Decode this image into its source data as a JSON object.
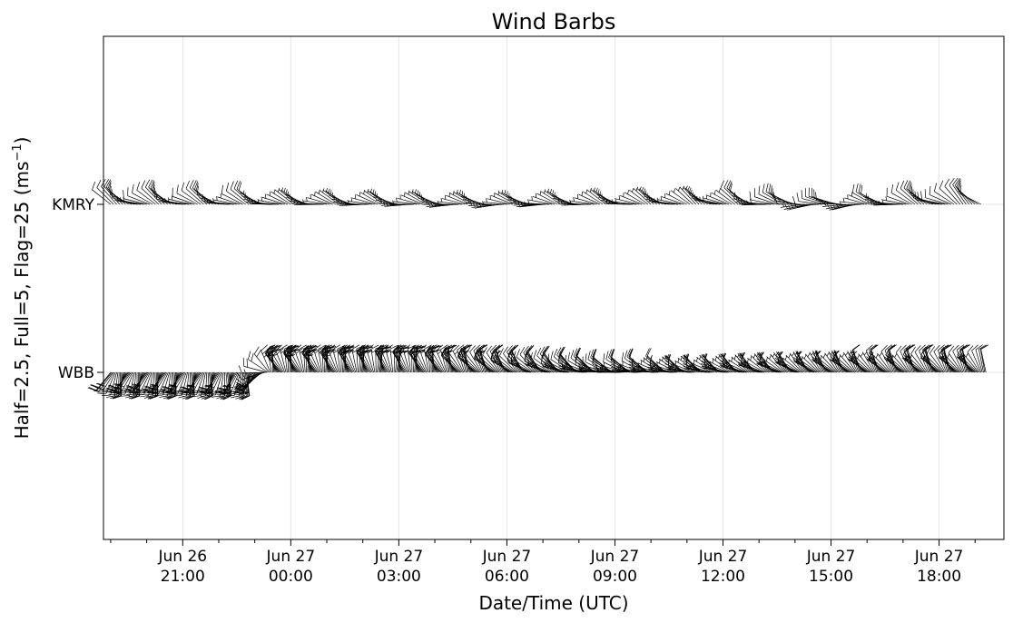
{
  "chart_data": {
    "type": "wind-barb",
    "title": "Wind Barbs",
    "xlabel": "Date/Time (UTC)",
    "ylabel": "Half=2.5, Full=5, Flag=25 (ms",
    "ylabel_sup": "−1",
    "ylabel_end": ")",
    "categories": [
      "KMRY",
      "WBB"
    ],
    "x_ticks": [
      {
        "line1": "Jun 26",
        "line2": "21:00",
        "hour": 21
      },
      {
        "line1": "Jun 27",
        "line2": "00:00",
        "hour": 24
      },
      {
        "line1": "Jun 27",
        "line2": "03:00",
        "hour": 27
      },
      {
        "line1": "Jun 27",
        "line2": "06:00",
        "hour": 30
      },
      {
        "line1": "Jun 27",
        "line2": "09:00",
        "hour": 33
      },
      {
        "line1": "Jun 27",
        "line2": "12:00",
        "hour": 36
      },
      {
        "line1": "Jun 27",
        "line2": "15:00",
        "hour": 39
      },
      {
        "line1": "Jun 27",
        "line2": "18:00",
        "hour": 42
      }
    ],
    "xlim_hours": [
      18.8,
      43.8
    ],
    "grid": true,
    "series": [
      {
        "name": "KMRY",
        "start_hour": 19.0,
        "end_hour": 43.2,
        "step_minutes": 5,
        "speed_by_hour": [
          [
            19,
            5
          ],
          [
            21,
            4.5
          ],
          [
            24,
            3
          ],
          [
            27,
            2.5
          ],
          [
            30,
            2
          ],
          [
            33,
            2.5
          ],
          [
            36,
            3
          ],
          [
            38,
            4.5
          ],
          [
            40,
            3
          ],
          [
            42,
            5
          ],
          [
            43.2,
            5
          ]
        ],
        "direction_by_hour": [
          [
            19,
            300
          ],
          [
            24,
            290
          ],
          [
            30,
            280
          ],
          [
            36,
            300
          ],
          [
            39,
            270
          ],
          [
            43.2,
            310
          ]
        ]
      },
      {
        "name": "WBB",
        "start_hour": 19.0,
        "end_hour": 43.3,
        "step_minutes": 2,
        "speed_by_hour": [
          [
            19,
            10
          ],
          [
            23,
            10
          ],
          [
            27,
            8
          ],
          [
            30,
            5
          ],
          [
            33,
            4
          ],
          [
            36,
            2
          ],
          [
            39,
            2.5
          ],
          [
            42,
            4.5
          ],
          [
            43.3,
            4
          ]
        ],
        "direction_by_hour": [
          [
            19,
            200
          ],
          [
            23,
            190
          ],
          [
            23.5,
            340
          ],
          [
            27,
            350
          ],
          [
            30,
            320
          ],
          [
            33,
            290
          ],
          [
            36,
            300
          ],
          [
            39,
            320
          ],
          [
            43.3,
            330
          ]
        ]
      }
    ]
  }
}
